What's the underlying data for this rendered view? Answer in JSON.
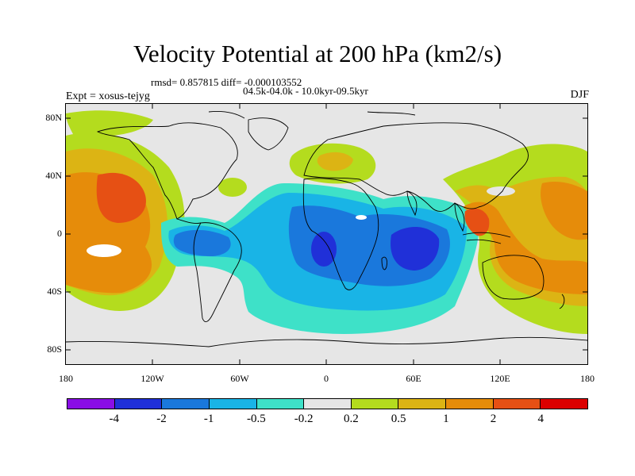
{
  "title": "Velocity Potential at 200 hPa (km2/s)",
  "rmsd_text": "rmsd= 0.857815 diff= -0.000103552",
  "subtitle": "04.5k-04.0k - 10.0kyr-09.5kyr",
  "experiment": "Expt = xosus-tejyg",
  "season": "DJF",
  "y_ticks": [
    "80N",
    "40N",
    "0",
    "40S",
    "80S"
  ],
  "x_ticks": [
    "180",
    "120W",
    "60W",
    "0",
    "60E",
    "120E",
    "180"
  ],
  "colorbar": {
    "colors": [
      "#8a0ee6",
      "#2030d8",
      "#1a78dc",
      "#19b4e6",
      "#3ee1c8",
      "#e6e6e6",
      "#b4dc1e",
      "#dcb414",
      "#e68c0a",
      "#e65014",
      "#dc0000"
    ],
    "labels": [
      "-4",
      "-2",
      "-1",
      "-0.5",
      "-0.2",
      "0.2",
      "0.5",
      "1",
      "2",
      "4"
    ]
  }
}
